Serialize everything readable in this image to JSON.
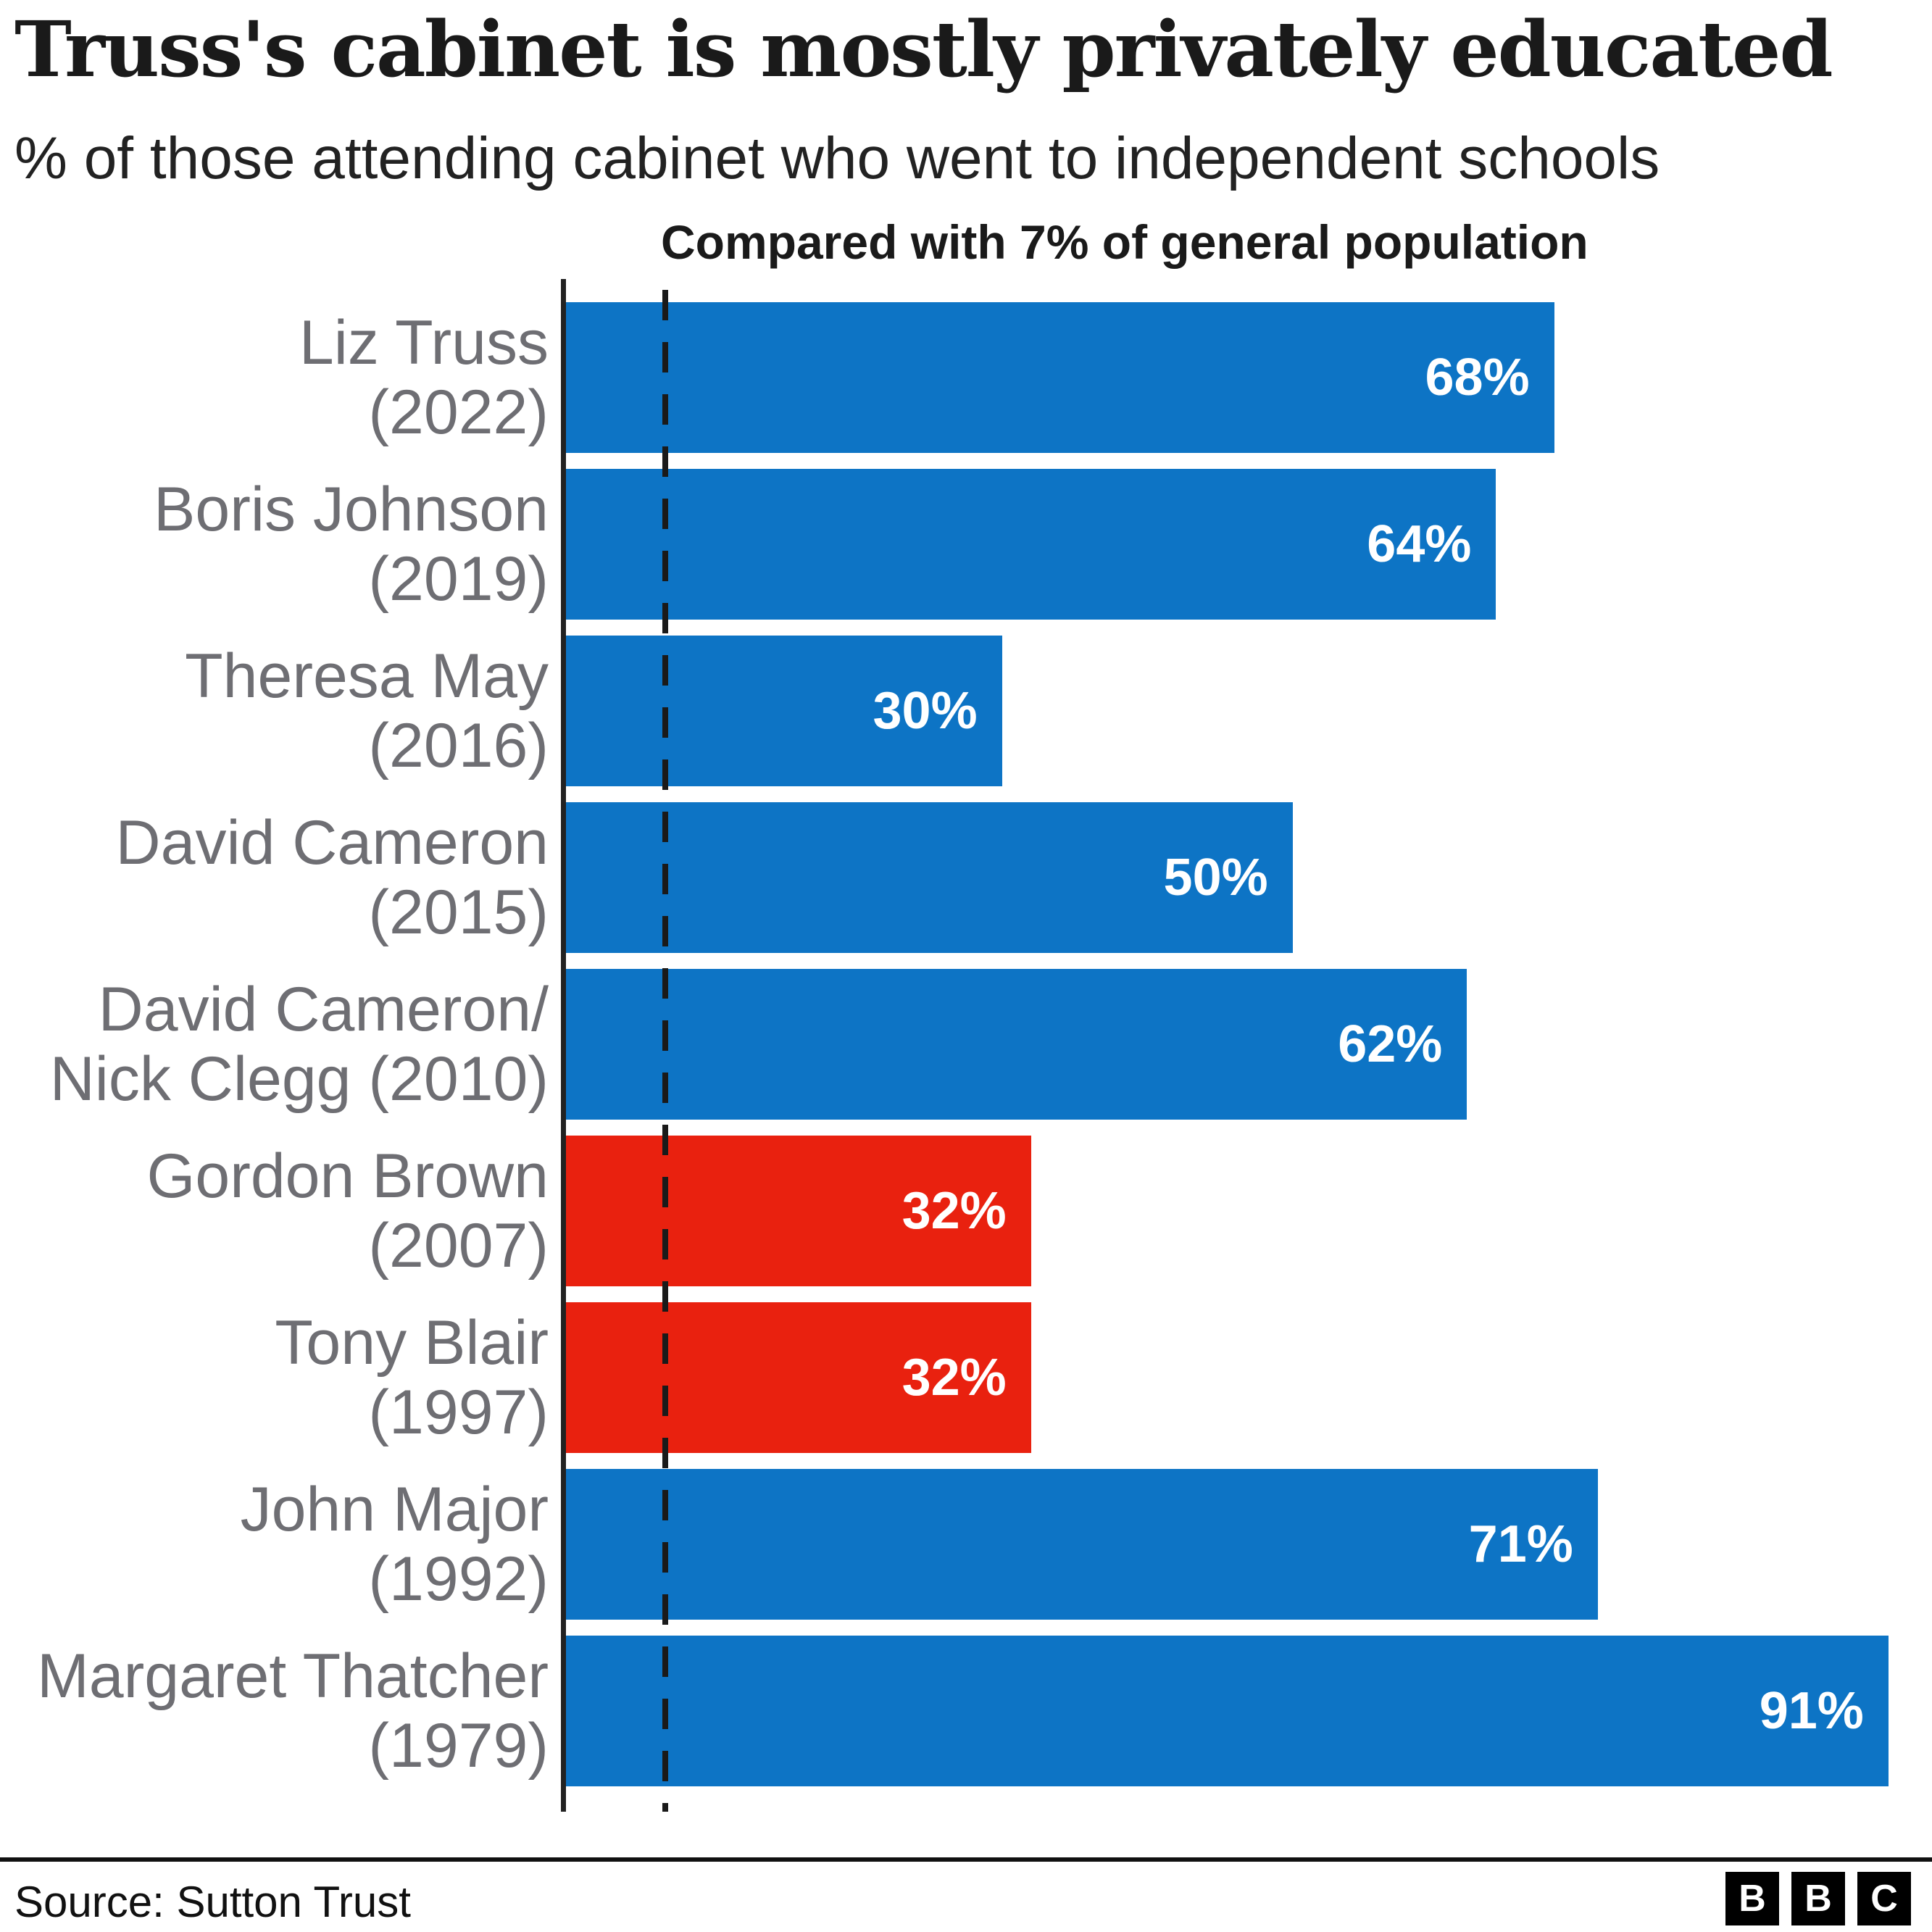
{
  "title": "Truss's cabinet is mostly privately educated",
  "subtitle": "% of those attending cabinet who went to independent schools",
  "annotation": "Compared with 7% of general population",
  "source": "Source: Sutton Trust",
  "logo": {
    "letters": [
      "B",
      "B",
      "C"
    ]
  },
  "colors": {
    "conservative": "#0d74c5",
    "labour": "#e9210f",
    "axis": "#222222",
    "reference_line": "#1a1a1a",
    "category_label": "#6e6e73",
    "value_label": "#ffffff",
    "text": "#1a1a1a"
  },
  "chart_data": {
    "type": "bar",
    "orientation": "horizontal",
    "title": "Truss's cabinet is mostly privately educated",
    "subtitle": "% of those attending cabinet who went to independent schools",
    "xlabel": "",
    "ylabel": "",
    "unit": "%",
    "xlim": [
      0,
      94
    ],
    "grid": false,
    "legend": false,
    "reference_line": {
      "value": 7,
      "label": "Compared with 7% of general population"
    },
    "categories": [
      "Liz Truss (2022)",
      "Boris Johnson (2019)",
      "Theresa May (2016)",
      "David Cameron (2015)",
      "David Cameron/Nick Clegg (2010)",
      "Gordon Brown (2007)",
      "Tony Blair (1997)",
      "John Major (1992)",
      "Margaret Thatcher (1979)"
    ],
    "values": [
      68,
      64,
      30,
      50,
      62,
      32,
      32,
      71,
      91
    ],
    "bars": [
      {
        "label_line1": "Liz Truss",
        "label_line2": "(2022)",
        "value": 68,
        "value_label": "68%",
        "party": "conservative"
      },
      {
        "label_line1": "Boris Johnson",
        "label_line2": "(2019)",
        "value": 64,
        "value_label": "64%",
        "party": "conservative"
      },
      {
        "label_line1": "Theresa May",
        "label_line2": "(2016)",
        "value": 30,
        "value_label": "30%",
        "party": "conservative"
      },
      {
        "label_line1": "David Cameron",
        "label_line2": "(2015)",
        "value": 50,
        "value_label": "50%",
        "party": "conservative"
      },
      {
        "label_line1": "David Cameron/",
        "label_line2": "Nick Clegg (2010)",
        "value": 62,
        "value_label": "62%",
        "party": "conservative"
      },
      {
        "label_line1": "Gordon Brown",
        "label_line2": "(2007)",
        "value": 32,
        "value_label": "32%",
        "party": "labour"
      },
      {
        "label_line1": "Tony Blair",
        "label_line2": "(1997)",
        "value": 32,
        "value_label": "32%",
        "party": "labour"
      },
      {
        "label_line1": "John Major",
        "label_line2": "(1992)",
        "value": 71,
        "value_label": "71%",
        "party": "conservative"
      },
      {
        "label_line1": "Margaret Thatcher",
        "label_line2": "(1979)",
        "value": 91,
        "value_label": "91%",
        "party": "conservative"
      }
    ]
  }
}
